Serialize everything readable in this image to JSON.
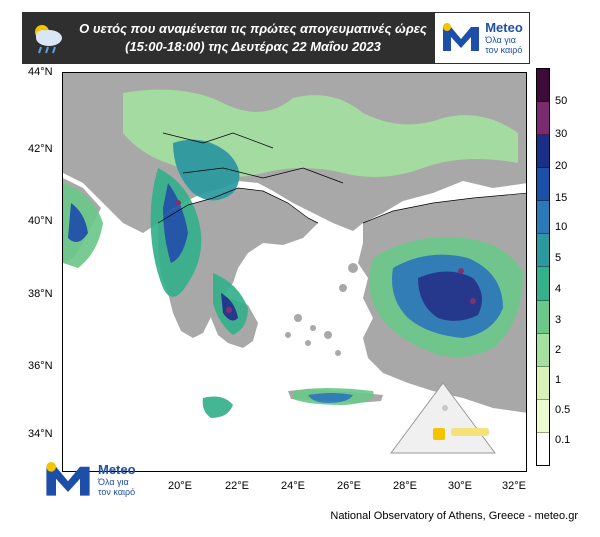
{
  "header": {
    "title_line1": "Ο υετός που αναμένεται τις πρώτες απογευματινές ώρες",
    "title_line2": "(15:00-18:00) της Δευτέρας 22 Μαΐου 2023",
    "weather_icon": "rain-cloud-icon"
  },
  "logo": {
    "name": "Meteo",
    "slogan_line1": "Όλα για",
    "slogan_line2": "τον καιρό",
    "brand_blue": "#1e4fa8",
    "brand_yellow": "#f5c400"
  },
  "map": {
    "lat_labels": [
      "44°N",
      "42°N",
      "40°N",
      "38°N",
      "36°N",
      "34°N"
    ],
    "lon_labels": [
      "20°E",
      "22°E",
      "24°E",
      "26°E",
      "28°E",
      "30°E",
      "32°E"
    ],
    "land_color": "#a8a8a8",
    "sea_color": "#ffffff"
  },
  "colorbar": {
    "labels": [
      "50",
      "30",
      "20",
      "15",
      "10",
      "5",
      "4",
      "3",
      "2",
      "1",
      "0.5",
      "0.1"
    ],
    "colors": [
      "#3d0a3a",
      "#7a2a6e",
      "#1a2f8a",
      "#1b50a8",
      "#2a7ab8",
      "#2a9aa0",
      "#34b08a",
      "#6cc88a",
      "#a4e0a0",
      "#d8f2b8",
      "#eefad0",
      "#ffffff"
    ]
  },
  "credit": "National Observatory of Athens, Greece - meteo.gr"
}
